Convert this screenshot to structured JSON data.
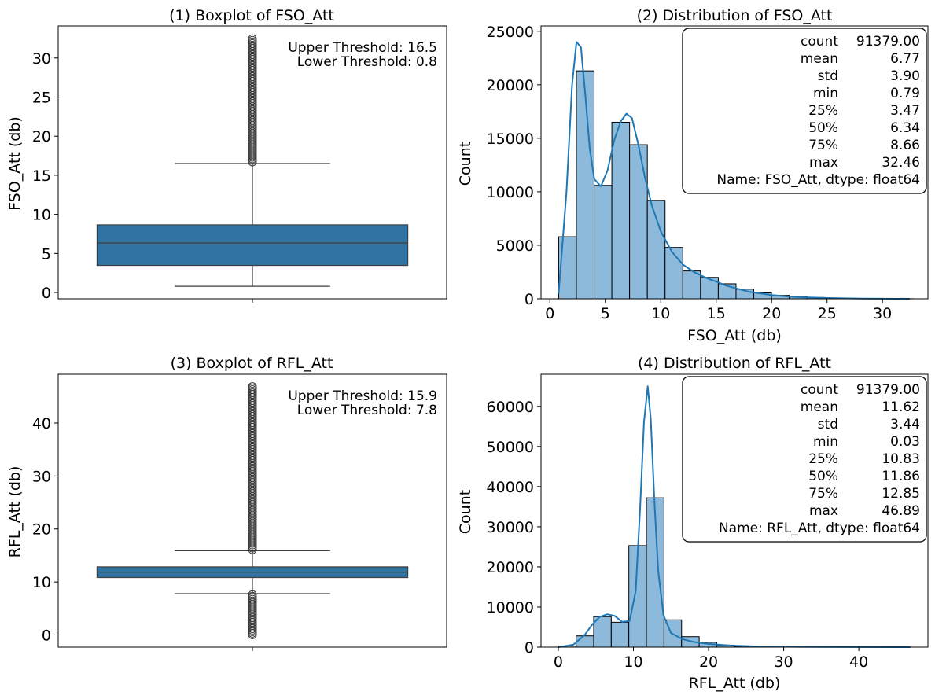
{
  "chart_data": [
    {
      "type": "box",
      "title": "(1) Boxplot of FSO_Att",
      "xlabel": "",
      "ylabel": "FSO_Att (db)",
      "ylim": [
        -0.8,
        34.1
      ],
      "yticks": [
        0,
        5,
        10,
        15,
        20,
        25,
        30
      ],
      "box": {
        "min": 0.79,
        "q1": 3.47,
        "median": 6.34,
        "q3": 8.66,
        "lower_whisker": 0.8,
        "upper_whisker": 16.5,
        "max": 32.46
      },
      "outlier_range": [
        16.5,
        32.46
      ],
      "color": "#3274a1",
      "annotations": [
        "Upper Threshold: 16.5",
        "Lower Threshold: 0.8"
      ]
    },
    {
      "type": "histogram",
      "title": "(2) Distribution of FSO_Att",
      "xlabel": "FSO_Att (db)",
      "ylabel": "Count",
      "xlim": [
        -0.8,
        34.1
      ],
      "ylim": [
        0,
        25500
      ],
      "xticks": [
        0,
        5,
        10,
        15,
        20,
        25,
        30
      ],
      "yticks": [
        0,
        5000,
        10000,
        15000,
        20000,
        25000
      ],
      "bin_width": 1.6,
      "bins_x": [
        0.79,
        2.39,
        3.99,
        5.59,
        7.19,
        8.79,
        10.39,
        11.99,
        13.59,
        15.19,
        16.79,
        18.39,
        19.99,
        21.59,
        23.19,
        24.79,
        26.39,
        27.99,
        29.59,
        31.19
      ],
      "counts": [
        5800,
        21300,
        10600,
        16500,
        14400,
        9200,
        4800,
        2600,
        2000,
        1400,
        900,
        550,
        320,
        200,
        120,
        70,
        40,
        25,
        15,
        8
      ],
      "kde_x": [
        0.79,
        1.5,
        2.0,
        2.4,
        2.8,
        3.2,
        3.6,
        4.0,
        4.6,
        5.2,
        5.8,
        6.4,
        6.9,
        7.4,
        8.0,
        8.6,
        9.2,
        10.0,
        11.0,
        12.0,
        13.0,
        14.0,
        15.0,
        16.0,
        18.0,
        20.0,
        22.0,
        25.0,
        28.0,
        32.46
      ],
      "kde_y": [
        500,
        10000,
        20000,
        24000,
        23500,
        19000,
        14000,
        11200,
        10500,
        12000,
        14800,
        16600,
        17300,
        16900,
        14300,
        11200,
        8700,
        6300,
        4400,
        3200,
        2500,
        2000,
        1600,
        1200,
        650,
        350,
        180,
        70,
        25,
        0
      ],
      "bar_color": "#8dbadb",
      "line_color": "#1f77b4",
      "stats_box": {
        "rows": [
          [
            "count",
            "91379.00"
          ],
          [
            "mean",
            "6.77"
          ],
          [
            "std",
            "3.90"
          ],
          [
            "min",
            "0.79"
          ],
          [
            "25%",
            "3.47"
          ],
          [
            "50%",
            "6.34"
          ],
          [
            "75%",
            "8.66"
          ],
          [
            "max",
            "32.46"
          ]
        ],
        "footer": "Name: FSO_Att, dtype: float64"
      }
    },
    {
      "type": "box",
      "title": "(3) Boxplot of RFL_Att",
      "xlabel": "",
      "ylabel": "RFL_Att (db)",
      "ylim": [
        -2.3,
        49.2
      ],
      "yticks": [
        0,
        10,
        20,
        30,
        40
      ],
      "box": {
        "min": 0.03,
        "q1": 10.83,
        "median": 11.86,
        "q3": 12.85,
        "lower_whisker": 7.8,
        "upper_whisker": 15.9,
        "max": 46.89
      },
      "outlier_range_low": [
        0.03,
        7.8
      ],
      "outlier_range": [
        15.9,
        46.89
      ],
      "color": "#3274a1",
      "annotations": [
        "Upper Threshold: 15.9",
        "Lower Threshold: 7.8"
      ]
    },
    {
      "type": "histogram",
      "title": "(4) Distribution of RFL_Att",
      "xlabel": "RFL_Att (db)",
      "ylabel": "Count",
      "xlim": [
        -2.3,
        49.2
      ],
      "ylim": [
        0,
        68000
      ],
      "xticks": [
        0,
        10,
        20,
        30,
        40
      ],
      "yticks": [
        0,
        10000,
        20000,
        30000,
        40000,
        50000,
        60000
      ],
      "bin_width": 2.34,
      "bins_x": [
        0.03,
        2.37,
        4.71,
        7.05,
        9.39,
        11.73,
        14.07,
        16.41,
        18.75,
        21.09,
        23.43,
        25.77,
        28.11,
        30.45
      ],
      "counts": [
        300,
        2800,
        7600,
        6200,
        25300,
        37200,
        6800,
        2600,
        1200,
        500,
        200,
        100,
        50,
        20
      ],
      "kde_x": [
        0.03,
        2.0,
        3.5,
        4.5,
        5.5,
        6.5,
        7.5,
        8.5,
        9.5,
        10.3,
        10.9,
        11.4,
        11.9,
        12.3,
        12.8,
        13.3,
        14.0,
        15.0,
        16.5,
        18.0,
        20.0,
        23.0,
        27.0,
        35.0,
        46.89
      ],
      "kde_y": [
        0,
        600,
        3000,
        5600,
        7500,
        8200,
        7800,
        6300,
        6500,
        14000,
        35000,
        56000,
        65000,
        57000,
        36000,
        19000,
        8000,
        3500,
        2000,
        1300,
        800,
        400,
        150,
        30,
        0
      ],
      "bar_color": "#8dbadb",
      "line_color": "#1f77b4",
      "stats_box": {
        "rows": [
          [
            "count",
            "91379.00"
          ],
          [
            "mean",
            "11.62"
          ],
          [
            "std",
            "3.44"
          ],
          [
            "min",
            "0.03"
          ],
          [
            "25%",
            "10.83"
          ],
          [
            "50%",
            "11.86"
          ],
          [
            "75%",
            "12.85"
          ],
          [
            "max",
            "46.89"
          ]
        ],
        "footer": "Name: RFL_Att, dtype: float64"
      }
    }
  ]
}
